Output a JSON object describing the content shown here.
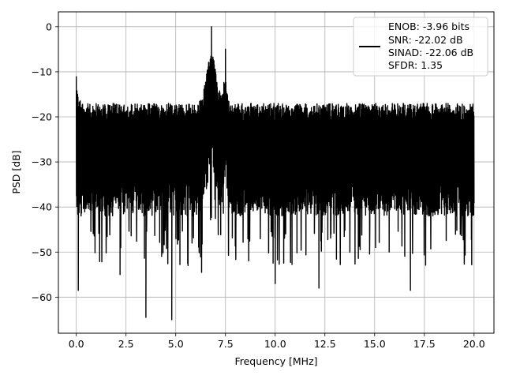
{
  "chart_data": {
    "type": "line",
    "title": "",
    "xlabel": "Frequency [MHz]",
    "ylabel": "PSD [dB]",
    "xlim": [
      -0.9,
      21.0
    ],
    "ylim": [
      -68,
      3.3
    ],
    "grid": true,
    "xticks": [
      0.0,
      2.5,
      5.0,
      7.5,
      10.0,
      12.5,
      15.0,
      17.5,
      20.0
    ],
    "xtick_labels": [
      "0.0",
      "2.5",
      "5.0",
      "7.5",
      "10.0",
      "12.5",
      "15.0",
      "17.5",
      "20.0"
    ],
    "yticks": [
      0,
      -10,
      -20,
      -30,
      -40,
      -50,
      -60
    ],
    "ytick_labels": [
      "0",
      "−10",
      "−20",
      "−30",
      "−40",
      "−50",
      "−60"
    ],
    "legend_position": "top-right",
    "series": [
      {
        "name": "ENOB: -3.96 bits\nSNR: -22.02 dB\nSINAD: -22.06 dB\nSFDR: 1.35",
        "color": "#000000",
        "noise_floor_upper_db": -17,
        "noise_floor_lower_db": -42,
        "peaks": [
          {
            "frequency_mhz": 6.8,
            "psd_db": 0.0
          },
          {
            "frequency_mhz": 7.5,
            "psd_db": -5.0
          },
          {
            "frequency_mhz": 0.0,
            "psd_db": -11.0
          }
        ],
        "deep_nulls": [
          {
            "frequency_mhz": 0.1,
            "psd_db": -58.5
          },
          {
            "frequency_mhz": 3.5,
            "psd_db": -64.5
          },
          {
            "frequency_mhz": 4.8,
            "psd_db": -65.0
          },
          {
            "frequency_mhz": 2.2,
            "psd_db": -55.0
          },
          {
            "frequency_mhz": 12.2,
            "psd_db": -58.0
          },
          {
            "frequency_mhz": 16.8,
            "psd_db": -58.5
          },
          {
            "frequency_mhz": 6.3,
            "psd_db": -54.5
          },
          {
            "frequency_mhz": 10.0,
            "psd_db": -57.0
          }
        ]
      }
    ],
    "legend_lines": [
      "ENOB: -3.96 bits",
      "SNR: -22.02 dB",
      "SINAD: -22.06 dB",
      "SFDR: 1.35"
    ]
  }
}
